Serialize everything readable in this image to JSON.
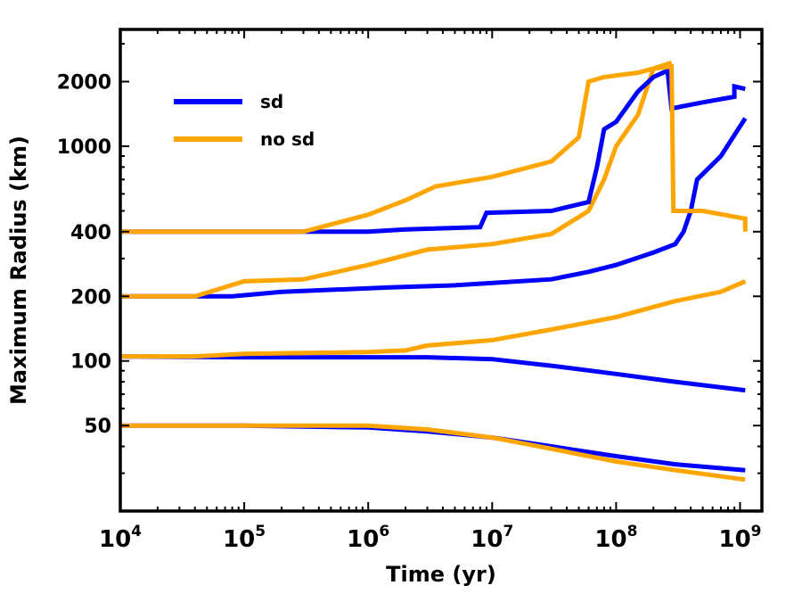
{
  "chart_data": {
    "type": "line",
    "title": "",
    "xlabel": "Time (yr)",
    "ylabel": "Maximum Radius (km)",
    "xscale": "log",
    "yscale": "log",
    "xlim": [
      10000,
      1500000000
    ],
    "ylim": [
      20,
      3500
    ],
    "x_ticks": [
      {
        "base": "10",
        "exp": "4"
      },
      {
        "base": "10",
        "exp": "5"
      },
      {
        "base": "10",
        "exp": "6"
      },
      {
        "base": "10",
        "exp": "7"
      },
      {
        "base": "10",
        "exp": "8"
      },
      {
        "base": "10",
        "exp": "9"
      }
    ],
    "y_ticks": [
      "50",
      "100",
      "200",
      "400",
      "1000",
      "2000"
    ],
    "y_tick_values": [
      50,
      100,
      200,
      400,
      1000,
      2000
    ],
    "legend": {
      "position": "top-left",
      "entries": [
        {
          "label": "sd",
          "color": "#0000ff"
        },
        {
          "label": "no sd",
          "color": "#ffa500"
        }
      ]
    },
    "colors": {
      "sd": "#0000ff",
      "no_sd": "#ffa500"
    },
    "series": [
      {
        "name": "sd",
        "group": "r50",
        "points": [
          [
            10000,
            50
          ],
          [
            100000,
            50
          ],
          [
            1000000,
            49
          ],
          [
            3000000,
            47
          ],
          [
            10000000,
            44
          ],
          [
            30000000,
            40
          ],
          [
            100000000,
            36
          ],
          [
            300000000,
            33
          ],
          [
            1100000000,
            31
          ]
        ]
      },
      {
        "name": "no sd",
        "group": "r50",
        "points": [
          [
            10000,
            50
          ],
          [
            100000,
            50
          ],
          [
            1000000,
            50
          ],
          [
            3000000,
            48
          ],
          [
            10000000,
            44
          ],
          [
            30000000,
            39
          ],
          [
            100000000,
            34
          ],
          [
            300000000,
            31
          ],
          [
            1100000000,
            28
          ]
        ]
      },
      {
        "name": "sd",
        "group": "r100",
        "points": [
          [
            10000,
            105
          ],
          [
            100000,
            104
          ],
          [
            1000000,
            104
          ],
          [
            3000000,
            104
          ],
          [
            10000000,
            102
          ],
          [
            30000000,
            95
          ],
          [
            100000000,
            87
          ],
          [
            300000000,
            80
          ],
          [
            1100000000,
            73
          ]
        ]
      },
      {
        "name": "no sd",
        "group": "r100",
        "points": [
          [
            10000,
            105
          ],
          [
            40000,
            105
          ],
          [
            100000,
            108
          ],
          [
            1000000,
            110
          ],
          [
            2000000,
            112
          ],
          [
            3000000,
            118
          ],
          [
            10000000,
            125
          ],
          [
            30000000,
            140
          ],
          [
            100000000,
            160
          ],
          [
            300000000,
            190
          ],
          [
            700000000,
            210
          ],
          [
            1100000000,
            235
          ]
        ]
      },
      {
        "name": "sd",
        "group": "r200",
        "points": [
          [
            10000,
            200
          ],
          [
            80000,
            200
          ],
          [
            200000,
            210
          ],
          [
            1500000,
            220
          ],
          [
            5000000,
            225
          ],
          [
            30000000,
            240
          ],
          [
            60000000,
            260
          ],
          [
            100000000,
            280
          ],
          [
            200000000,
            320
          ],
          [
            300000000,
            350
          ],
          [
            350000000,
            400
          ],
          [
            400000000,
            500
          ],
          [
            450000000,
            700
          ],
          [
            700000000,
            900
          ],
          [
            1100000000,
            1350
          ]
        ]
      },
      {
        "name": "no sd",
        "group": "r200",
        "points": [
          [
            10000,
            200
          ],
          [
            40000,
            200
          ],
          [
            100000,
            235
          ],
          [
            300000,
            240
          ],
          [
            1000000,
            280
          ],
          [
            3000000,
            330
          ],
          [
            10000000,
            350
          ],
          [
            30000000,
            390
          ],
          [
            60000000,
            500
          ],
          [
            80000000,
            700
          ],
          [
            100000000,
            1000
          ],
          [
            150000000,
            1400
          ],
          [
            200000000,
            2300
          ],
          [
            280000000,
            2450
          ]
        ]
      },
      {
        "name": "sd",
        "group": "r400",
        "points": [
          [
            10000,
            400
          ],
          [
            300000,
            400
          ],
          [
            1000000,
            400
          ],
          [
            2000000,
            410
          ],
          [
            8000000,
            420
          ],
          [
            9000000,
            490
          ],
          [
            30000000,
            500
          ],
          [
            60000000,
            550
          ],
          [
            70000000,
            800
          ],
          [
            80000000,
            1200
          ],
          [
            100000000,
            1300
          ],
          [
            150000000,
            1800
          ],
          [
            200000000,
            2100
          ],
          [
            260000000,
            2250
          ],
          [
            280000000,
            1500
          ],
          [
            500000000,
            1600
          ],
          [
            900000000,
            1700
          ],
          [
            900000000,
            1900
          ],
          [
            1100000000,
            1850
          ]
        ]
      },
      {
        "name": "no sd",
        "group": "r400",
        "points": [
          [
            10000,
            400
          ],
          [
            300000,
            400
          ],
          [
            1000000,
            480
          ],
          [
            2000000,
            560
          ],
          [
            3500000,
            650
          ],
          [
            10000000,
            720
          ],
          [
            30000000,
            850
          ],
          [
            50000000,
            1100
          ],
          [
            60000000,
            2000
          ],
          [
            80000000,
            2100
          ],
          [
            150000000,
            2200
          ],
          [
            200000000,
            2300
          ],
          [
            280000000,
            2350
          ],
          [
            290000000,
            500
          ],
          [
            500000000,
            500
          ],
          [
            1100000000,
            460
          ],
          [
            1100000000,
            400
          ]
        ]
      }
    ]
  }
}
